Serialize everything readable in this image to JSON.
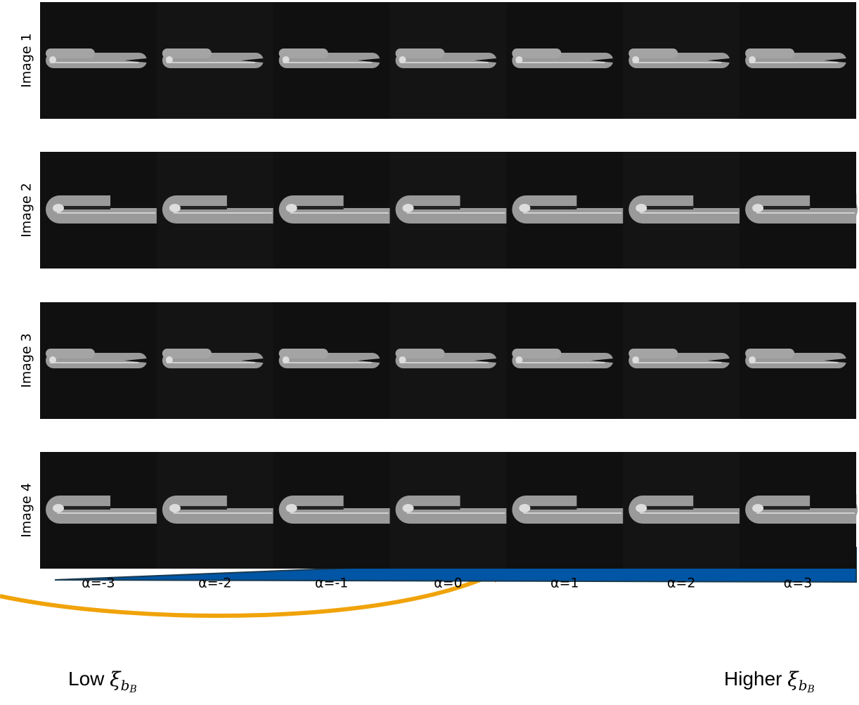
{
  "rows": [
    "Image 1",
    "Image 2",
    "Image 3",
    "Image 4"
  ],
  "columns": [
    "α=-3",
    "α=-2",
    "α=-1",
    "α=0",
    "α=1",
    "α=2",
    "α=3"
  ],
  "low_label": {
    "text": "Low",
    "symbol": "ξ",
    "sub": "b",
    "subsub": "B"
  },
  "high_label": {
    "text": "Higher",
    "symbol": "ξ",
    "sub": "b",
    "subsub": "B"
  }
}
